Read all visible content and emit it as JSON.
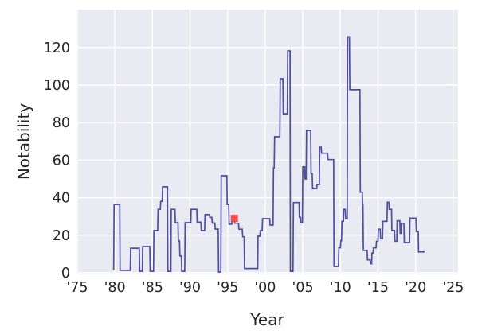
{
  "chart_data": {
    "type": "line",
    "title": "",
    "xlabel": "Year",
    "ylabel": "Notability",
    "xlim": [
      1974.9,
      2025.65
    ],
    "ylim": [
      -0.85,
      140.25
    ],
    "grid": true,
    "legend": null,
    "colors": {
      "figure_background": "#ffffff",
      "axes_background": "#eaeaf2",
      "grid": "#ffffff",
      "tick_label": "#262626",
      "line": "#4b4f9f",
      "marker": "#fa4b4b"
    },
    "x_ticks": [
      {
        "v": 1975,
        "label": "'75"
      },
      {
        "v": 1980,
        "label": "'80"
      },
      {
        "v": 1985,
        "label": "'85"
      },
      {
        "v": 1990,
        "label": "'90"
      },
      {
        "v": 1995,
        "label": "'95"
      },
      {
        "v": 2000,
        "label": "'00"
      },
      {
        "v": 2005,
        "label": "'05"
      },
      {
        "v": 2010,
        "label": "'10"
      },
      {
        "v": 2015,
        "label": "'15"
      },
      {
        "v": 2020,
        "label": "'20"
      },
      {
        "v": 2025,
        "label": "'25"
      }
    ],
    "y_ticks": [
      {
        "v": 0,
        "label": "0"
      },
      {
        "v": 20,
        "label": "20"
      },
      {
        "v": 40,
        "label": "40"
      },
      {
        "v": 60,
        "label": "60"
      },
      {
        "v": 80,
        "label": "80"
      },
      {
        "v": 100,
        "label": "100"
      },
      {
        "v": 120,
        "label": "120"
      }
    ],
    "series": [
      {
        "name": "notability",
        "color": "#4b4f9f",
        "points": [
          [
            1979.85,
            1.5
          ],
          [
            1979.9,
            36.4
          ],
          [
            1980.65,
            36.4
          ],
          [
            1980.7,
            1.3
          ],
          [
            1982.05,
            1.3
          ],
          [
            1982.1,
            13.1
          ],
          [
            1983.25,
            13.1
          ],
          [
            1983.3,
            0.8
          ],
          [
            1983.65,
            0.8
          ],
          [
            1983.7,
            14.0
          ],
          [
            1984.65,
            14.0
          ],
          [
            1984.7,
            0.8
          ],
          [
            1985.15,
            0.8
          ],
          [
            1985.2,
            22.5
          ],
          [
            1985.7,
            22.5
          ],
          [
            1985.75,
            33.8
          ],
          [
            1986.05,
            33.8
          ],
          [
            1986.1,
            38.0
          ],
          [
            1986.3,
            38.0
          ],
          [
            1986.35,
            45.8
          ],
          [
            1987.0,
            45.8
          ],
          [
            1987.05,
            0.8
          ],
          [
            1987.45,
            0.8
          ],
          [
            1987.5,
            33.8
          ],
          [
            1988.0,
            33.8
          ],
          [
            1988.05,
            26.7
          ],
          [
            1988.4,
            26.7
          ],
          [
            1988.45,
            17.0
          ],
          [
            1988.6,
            17.0
          ],
          [
            1988.65,
            9.0
          ],
          [
            1988.85,
            9.0
          ],
          [
            1988.9,
            0.8
          ],
          [
            1989.3,
            0.8
          ],
          [
            1989.35,
            26.7
          ],
          [
            1990.1,
            26.7
          ],
          [
            1990.15,
            33.8
          ],
          [
            1990.9,
            33.8
          ],
          [
            1990.95,
            27.0
          ],
          [
            1991.45,
            27.0
          ],
          [
            1991.5,
            22.5
          ],
          [
            1991.95,
            22.5
          ],
          [
            1992.0,
            31.0
          ],
          [
            1992.6,
            31.0
          ],
          [
            1992.65,
            29.5
          ],
          [
            1992.9,
            29.5
          ],
          [
            1992.95,
            26.5
          ],
          [
            1993.3,
            26.5
          ],
          [
            1993.35,
            23.3
          ],
          [
            1993.75,
            23.3
          ],
          [
            1993.8,
            0.4
          ],
          [
            1994.1,
            0.4
          ],
          [
            1994.15,
            51.7
          ],
          [
            1994.9,
            51.7
          ],
          [
            1994.95,
            36.4
          ],
          [
            1995.15,
            36.4
          ],
          [
            1995.2,
            25.9
          ],
          [
            1995.55,
            25.9
          ],
          [
            1995.6,
            28.8
          ],
          [
            1995.9,
            28.8
          ],
          [
            1995.95,
            26.4
          ],
          [
            1996.45,
            26.4
          ],
          [
            1996.5,
            23.2
          ],
          [
            1996.95,
            23.2
          ],
          [
            1997.0,
            19.2
          ],
          [
            1997.2,
            19.2
          ],
          [
            1997.25,
            2.3
          ],
          [
            1999.0,
            2.3
          ],
          [
            1999.05,
            19.5
          ],
          [
            1999.3,
            19.5
          ],
          [
            1999.35,
            22.5
          ],
          [
            1999.6,
            22.5
          ],
          [
            1999.65,
            28.8
          ],
          [
            2000.6,
            28.8
          ],
          [
            2000.65,
            25.4
          ],
          [
            2001.05,
            25.4
          ],
          [
            2001.1,
            55.9
          ],
          [
            2001.2,
            55.9
          ],
          [
            2001.25,
            72.5
          ],
          [
            2001.95,
            72.5
          ],
          [
            2002.0,
            103.4
          ],
          [
            2002.35,
            103.4
          ],
          [
            2002.4,
            84.7
          ],
          [
            2002.95,
            84.7
          ],
          [
            2003.0,
            118.2
          ],
          [
            2003.3,
            118.2
          ],
          [
            2003.35,
            0.8
          ],
          [
            2003.7,
            0.8
          ],
          [
            2003.75,
            37.4
          ],
          [
            2004.5,
            37.4
          ],
          [
            2004.55,
            29.5
          ],
          [
            2004.7,
            29.5
          ],
          [
            2004.75,
            26.7
          ],
          [
            2004.95,
            26.7
          ],
          [
            2005.0,
            56.4
          ],
          [
            2005.25,
            56.4
          ],
          [
            2005.3,
            50.0
          ],
          [
            2005.45,
            50.0
          ],
          [
            2005.5,
            75.8
          ],
          [
            2006.05,
            75.8
          ],
          [
            2006.1,
            52.8
          ],
          [
            2006.25,
            52.8
          ],
          [
            2006.3,
            44.8
          ],
          [
            2006.85,
            44.8
          ],
          [
            2006.9,
            47.0
          ],
          [
            2007.2,
            47.0
          ],
          [
            2007.25,
            66.9
          ],
          [
            2007.45,
            66.9
          ],
          [
            2007.5,
            63.7
          ],
          [
            2008.3,
            63.7
          ],
          [
            2008.35,
            60.3
          ],
          [
            2009.1,
            60.3
          ],
          [
            2009.15,
            3.4
          ],
          [
            2009.75,
            3.4
          ],
          [
            2009.8,
            13.3
          ],
          [
            2010.0,
            13.3
          ],
          [
            2010.05,
            17.1
          ],
          [
            2010.15,
            17.1
          ],
          [
            2010.2,
            27.4
          ],
          [
            2010.4,
            27.4
          ],
          [
            2010.45,
            33.8
          ],
          [
            2010.65,
            33.8
          ],
          [
            2010.7,
            28.8
          ],
          [
            2010.9,
            28.8
          ],
          [
            2010.95,
            125.7
          ],
          [
            2011.2,
            125.7
          ],
          [
            2011.25,
            97.5
          ],
          [
            2012.6,
            97.5
          ],
          [
            2012.65,
            42.9
          ],
          [
            2012.9,
            42.9
          ],
          [
            2012.95,
            36.6
          ],
          [
            2013.0,
            36.6
          ],
          [
            2013.05,
            11.9
          ],
          [
            2013.55,
            11.9
          ],
          [
            2013.6,
            6.9
          ],
          [
            2013.95,
            6.9
          ],
          [
            2014.0,
            4.8
          ],
          [
            2014.15,
            4.8
          ],
          [
            2014.2,
            10.5
          ],
          [
            2014.35,
            10.5
          ],
          [
            2014.4,
            13.3
          ],
          [
            2014.75,
            13.3
          ],
          [
            2014.8,
            16.8
          ],
          [
            2015.0,
            16.8
          ],
          [
            2015.05,
            23.2
          ],
          [
            2015.3,
            23.2
          ],
          [
            2015.35,
            18.2
          ],
          [
            2015.6,
            18.2
          ],
          [
            2015.65,
            27.4
          ],
          [
            2016.2,
            27.4
          ],
          [
            2016.25,
            37.6
          ],
          [
            2016.45,
            37.6
          ],
          [
            2016.5,
            33.8
          ],
          [
            2016.8,
            33.8
          ],
          [
            2016.85,
            22.5
          ],
          [
            2017.2,
            22.5
          ],
          [
            2017.25,
            16.8
          ],
          [
            2017.5,
            16.8
          ],
          [
            2017.55,
            27.7
          ],
          [
            2017.9,
            27.7
          ],
          [
            2017.95,
            21.0
          ],
          [
            2018.05,
            21.0
          ],
          [
            2018.1,
            26.3
          ],
          [
            2018.45,
            26.3
          ],
          [
            2018.5,
            16.1
          ],
          [
            2019.2,
            16.1
          ],
          [
            2019.25,
            29.1
          ],
          [
            2020.05,
            29.1
          ],
          [
            2020.1,
            22.0
          ],
          [
            2020.35,
            22.0
          ],
          [
            2020.4,
            11.1
          ],
          [
            2021.2,
            11.1
          ]
        ]
      }
    ],
    "marker": {
      "x": 1995.9,
      "y": 29.0,
      "shape": "square",
      "size": 9,
      "color": "#fa4b4b"
    }
  }
}
